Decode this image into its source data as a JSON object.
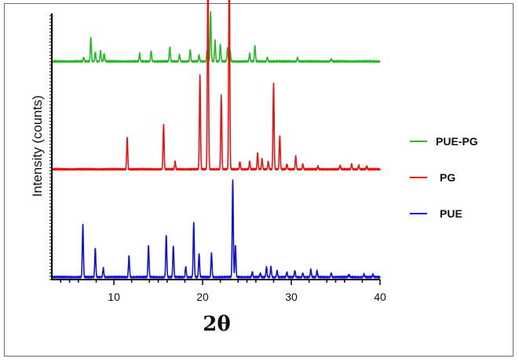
{
  "chart_data": {
    "type": "line",
    "title": "",
    "xlabel": "2θ",
    "ylabel": "Intensity (counts)",
    "xlim": [
      3,
      40
    ],
    "x_ticks": [
      10,
      20,
      30,
      40
    ],
    "y_ticks_labeled": false,
    "grid": false,
    "legend_position": "right",
    "series": [
      {
        "name": "PUE-PG",
        "color": "#22bb22",
        "baseline": 0.82,
        "peaks": [
          [
            6.6,
            0.015
          ],
          [
            7.4,
            0.09
          ],
          [
            7.9,
            0.035
          ],
          [
            8.5,
            0.04
          ],
          [
            8.9,
            0.03
          ],
          [
            12.9,
            0.03
          ],
          [
            14.2,
            0.04
          ],
          [
            16.3,
            0.055
          ],
          [
            17.4,
            0.025
          ],
          [
            18.6,
            0.045
          ],
          [
            19.6,
            0.025
          ],
          [
            20.5,
            0.04
          ],
          [
            20.9,
            0.19
          ],
          [
            21.4,
            0.08
          ],
          [
            22.0,
            0.065
          ],
          [
            22.8,
            0.05
          ],
          [
            23.1,
            0.04
          ],
          [
            25.3,
            0.03
          ],
          [
            25.9,
            0.06
          ],
          [
            27.3,
            0.015
          ],
          [
            30.7,
            0.015
          ],
          [
            34.5,
            0.008
          ]
        ]
      },
      {
        "name": "PG",
        "color": "#ee1111",
        "baseline": 0.41,
        "peaks": [
          [
            11.5,
            0.12
          ],
          [
            15.6,
            0.17
          ],
          [
            16.9,
            0.03
          ],
          [
            19.7,
            0.36
          ],
          [
            20.6,
            0.8
          ],
          [
            22.1,
            0.28
          ],
          [
            23.0,
            0.8
          ],
          [
            24.2,
            0.03
          ],
          [
            25.3,
            0.03
          ],
          [
            26.2,
            0.06
          ],
          [
            26.7,
            0.04
          ],
          [
            27.4,
            0.03
          ],
          [
            28.0,
            0.33
          ],
          [
            28.7,
            0.13
          ],
          [
            29.5,
            0.02
          ],
          [
            30.5,
            0.05
          ],
          [
            31.3,
            0.02
          ],
          [
            33.0,
            0.012
          ],
          [
            35.5,
            0.015
          ],
          [
            36.8,
            0.02
          ],
          [
            37.6,
            0.015
          ],
          [
            38.5,
            0.012
          ]
        ]
      },
      {
        "name": "PUE",
        "color": "#1111dd",
        "baseline": 0.0,
        "peaks": [
          [
            6.5,
            0.2
          ],
          [
            7.9,
            0.11
          ],
          [
            8.8,
            0.035
          ],
          [
            11.7,
            0.08
          ],
          [
            13.9,
            0.12
          ],
          [
            15.9,
            0.16
          ],
          [
            16.7,
            0.12
          ],
          [
            18.1,
            0.04
          ],
          [
            19.0,
            0.21
          ],
          [
            19.6,
            0.09
          ],
          [
            21.0,
            0.09
          ],
          [
            23.4,
            0.37
          ],
          [
            23.7,
            0.12
          ],
          [
            25.6,
            0.02
          ],
          [
            26.5,
            0.015
          ],
          [
            27.2,
            0.04
          ],
          [
            27.7,
            0.04
          ],
          [
            28.4,
            0.025
          ],
          [
            29.5,
            0.02
          ],
          [
            30.4,
            0.025
          ],
          [
            31.3,
            0.015
          ],
          [
            32.2,
            0.03
          ],
          [
            32.9,
            0.025
          ],
          [
            34.5,
            0.015
          ],
          [
            36.5,
            0.01
          ],
          [
            38.2,
            0.012
          ],
          [
            39.2,
            0.01
          ]
        ]
      }
    ]
  }
}
